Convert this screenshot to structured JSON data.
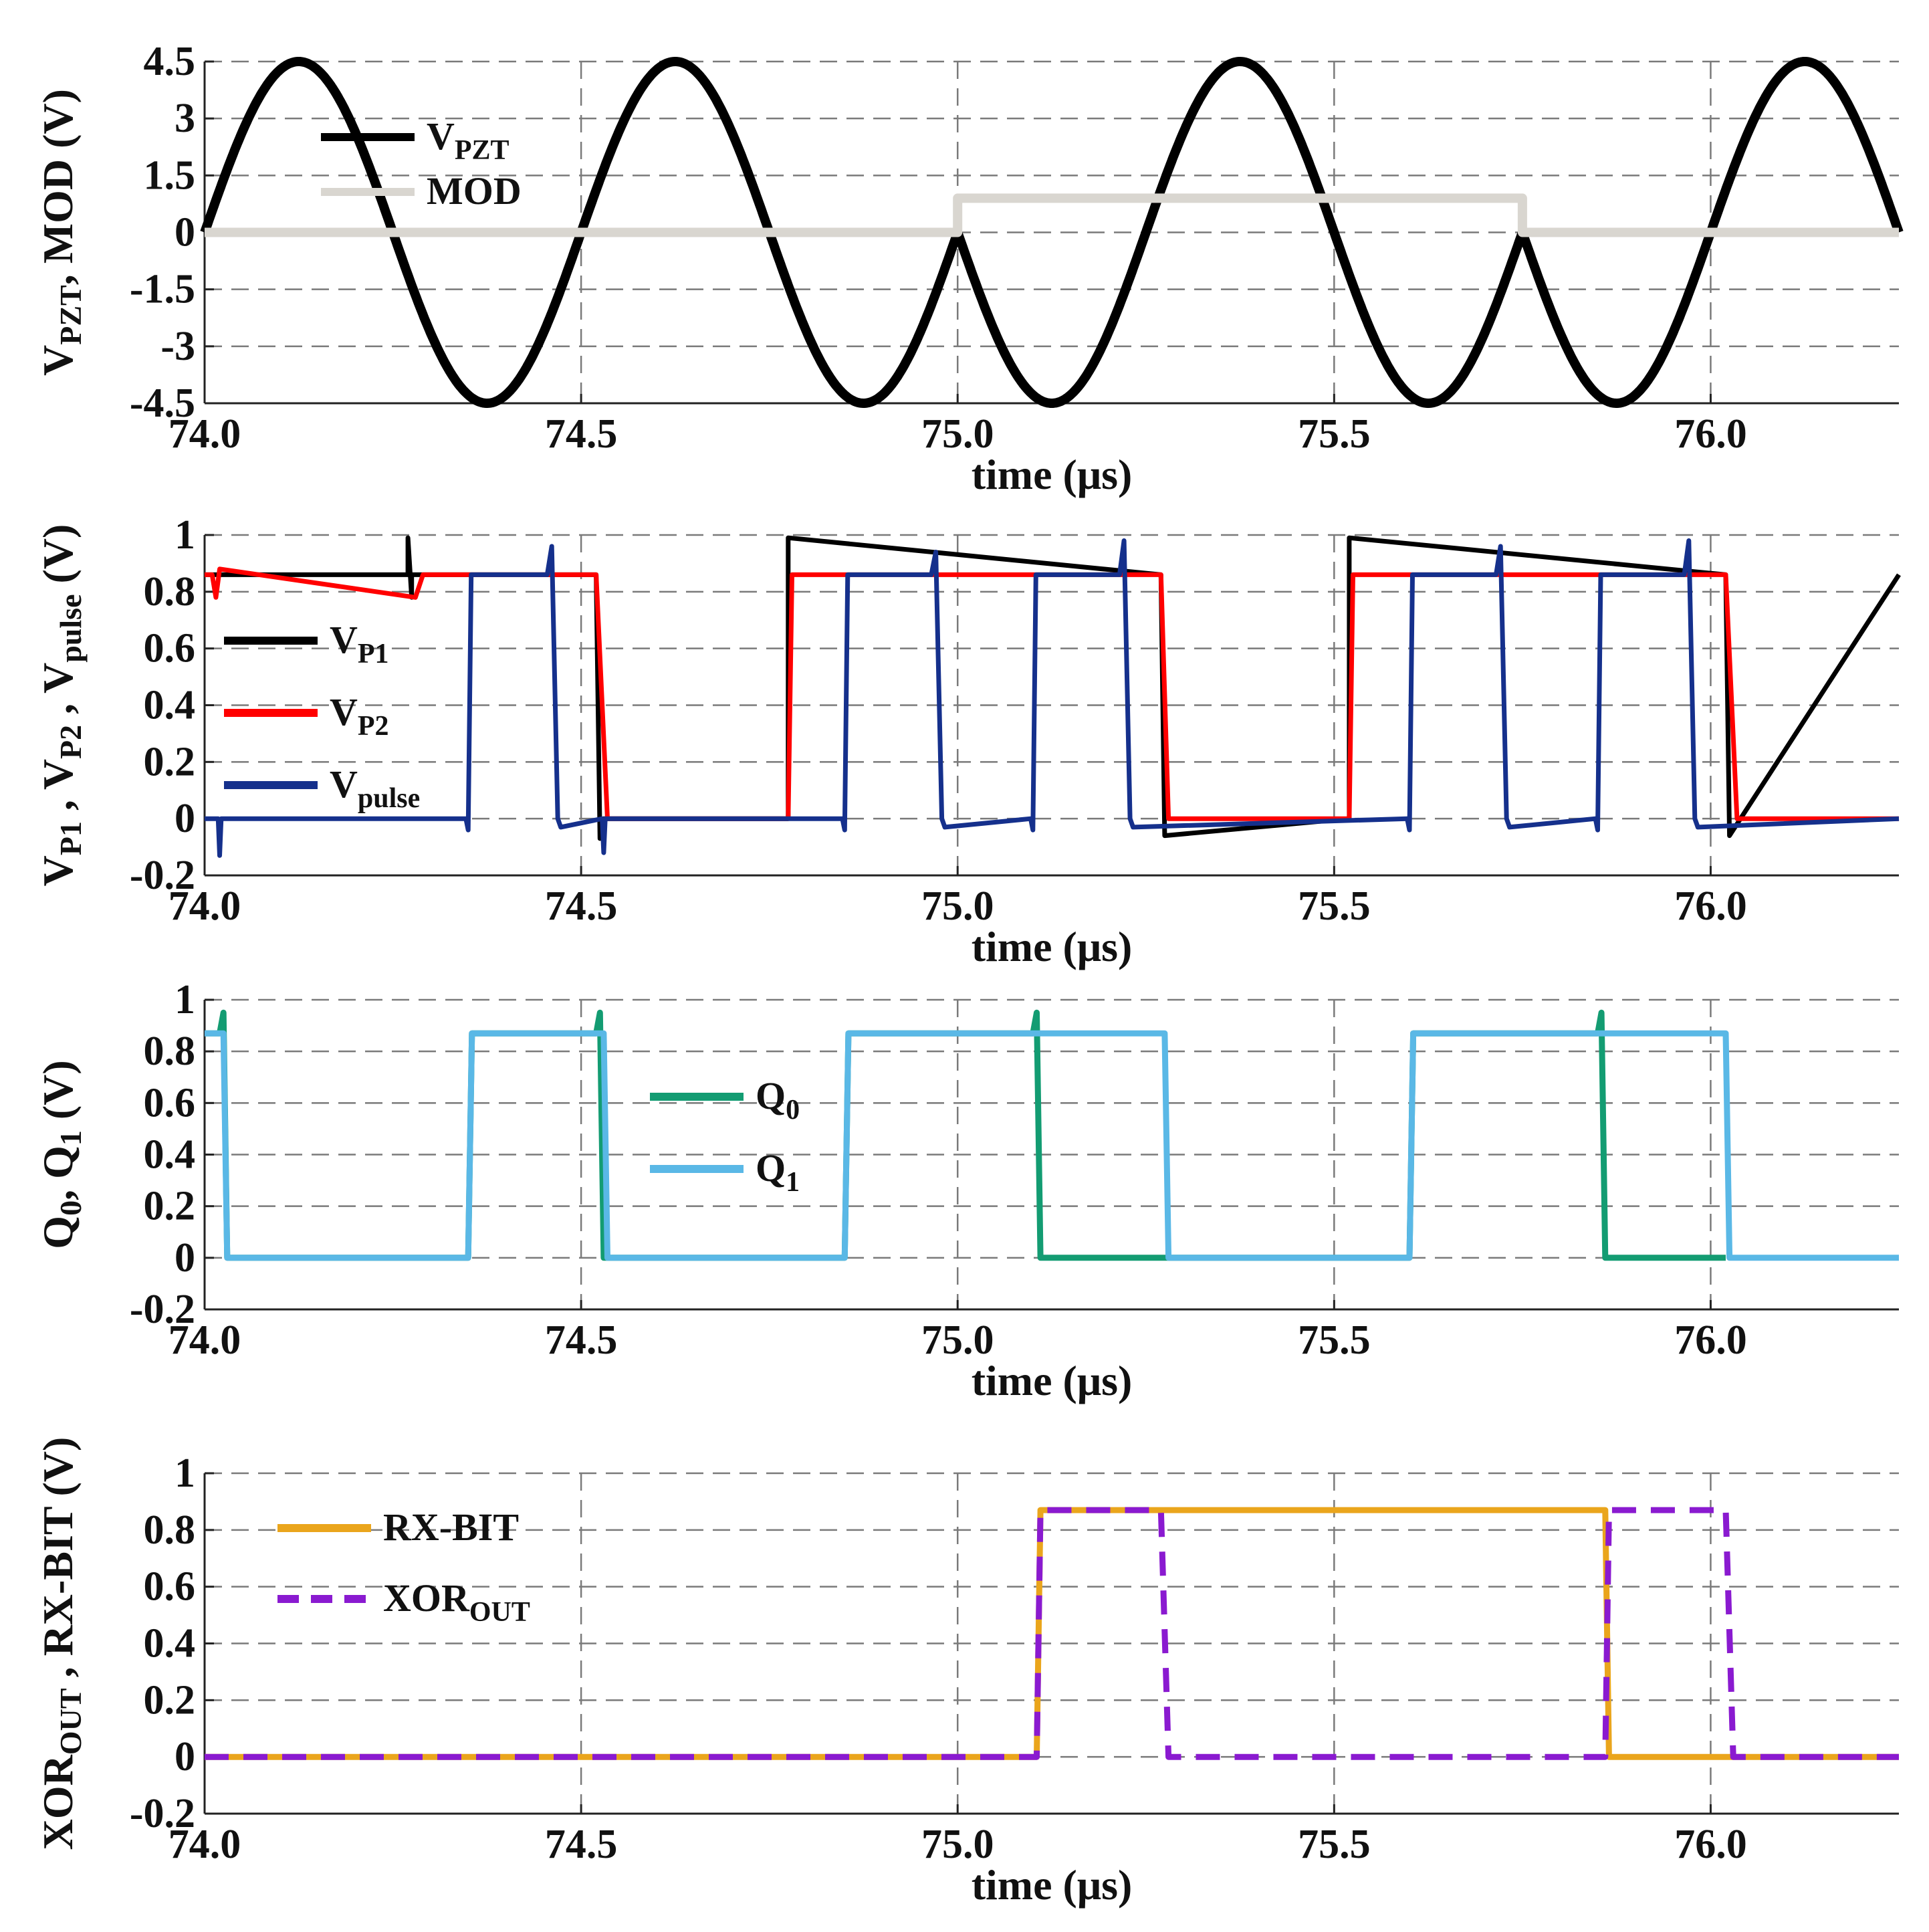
{
  "chart_data": [
    {
      "type": "line",
      "xlabel": "time  (μs)",
      "ylabel": "V_PZT, MOD (V)",
      "xlim": [
        74.0,
        76.25
      ],
      "ylim": [
        -4.5,
        4.5
      ],
      "xticks": [
        "74.0",
        "74.5",
        "75.0",
        "75.5",
        "76.0"
      ],
      "yticks": [
        "4.5",
        "3",
        "1.5",
        "0",
        "-1.5",
        "-3",
        "-4.5"
      ],
      "legend": [
        {
          "label": "V",
          "sub": "PZT",
          "color": "#000000"
        },
        {
          "label": "MOD",
          "sub": "",
          "color": "#d9d6d0"
        }
      ],
      "series": [
        {
          "name": "V_PZT",
          "color": "#000000",
          "description": "sinusoid amplitude 4.5 V, period 0.5 us, phase-inverted at 75.0 and 75.75 us",
          "params": {
            "amplitude": 4.5,
            "period": 0.5,
            "flips": [
              75.0,
              75.75
            ]
          }
        },
        {
          "name": "MOD",
          "color": "#d9d6d0",
          "x": [
            74.0,
            75.0,
            75.0,
            75.75,
            75.75,
            76.25
          ],
          "y": [
            0,
            0,
            0.9,
            0.9,
            0,
            0
          ]
        }
      ]
    },
    {
      "type": "line",
      "xlabel": "time  (μs)",
      "ylabel": "V_P1, V_P2, V_pulse (V)",
      "xlim": [
        74.0,
        76.25
      ],
      "ylim": [
        -0.2,
        1.0
      ],
      "xticks": [
        "74.0",
        "74.5",
        "75.0",
        "75.5",
        "76.0"
      ],
      "yticks": [
        "1",
        "0.8",
        "0.6",
        "0.4",
        "0.2",
        "0",
        "-0.2"
      ],
      "legend": [
        {
          "label": "V",
          "sub": "P1",
          "color": "#000000"
        },
        {
          "label": "V",
          "sub": "P2",
          "color": "#ff0000"
        },
        {
          "label": "V",
          "sub": "pulse",
          "color": "#15308c"
        }
      ],
      "series": [
        {
          "name": "V_P1",
          "color": "#000000",
          "x": [
            74.0,
            74.27,
            74.27,
            74.275,
            74.275,
            74.52,
            74.525,
            74.53,
            74.775,
            74.775,
            75.27,
            75.275,
            75.52,
            75.52,
            76.02,
            76.025,
            76.25
          ],
          "y": [
            0.86,
            0.86,
            0.99,
            0.78,
            0.86,
            0.86,
            -0.07,
            0,
            0,
            0.99,
            0.86,
            -0.06,
            0,
            0.99,
            0.86,
            -0.06,
            0.86
          ]
        },
        {
          "name": "V_P2",
          "color": "#ff0000",
          "x": [
            74.0,
            74.01,
            74.015,
            74.02,
            74.28,
            74.29,
            74.3,
            74.52,
            74.535,
            74.775,
            74.78,
            75.27,
            75.28,
            75.52,
            75.525,
            76.02,
            76.035,
            76.25
          ],
          "y": [
            0.86,
            0.86,
            0.78,
            0.88,
            0.78,
            0.86,
            0.86,
            0.86,
            0,
            0,
            0.86,
            0.86,
            0,
            0,
            0.86,
            0.86,
            0,
            0
          ]
        },
        {
          "name": "V_pulse",
          "color": "#15308c",
          "pulses": [
            [
              74.35,
              74.465,
              0.86,
              0.96
            ],
            [
              74.85,
              74.975,
              0.86,
              0.94
            ],
            [
              75.1,
              75.225,
              0.86,
              0.98
            ],
            [
              75.6,
              75.725,
              0.86,
              0.96
            ],
            [
              75.85,
              75.975,
              0.86,
              0.98
            ]
          ],
          "glitches": [
            [
              74.02,
              -0.13
            ],
            [
              74.53,
              -0.12
            ]
          ]
        }
      ]
    },
    {
      "type": "line",
      "xlabel": "time  (μs)",
      "ylabel": "Q0, Q1 (V)",
      "xlim": [
        74.0,
        76.25
      ],
      "ylim": [
        -0.2,
        1.0
      ],
      "xticks": [
        "74.0",
        "74.5",
        "75.0",
        "75.5",
        "76.0"
      ],
      "yticks": [
        "1",
        "0.8",
        "0.6",
        "0.4",
        "0.2",
        "0",
        "-0.2"
      ],
      "legend": [
        {
          "label": "Q",
          "sub": "0",
          "color": "#139c72"
        },
        {
          "label": "Q",
          "sub": "1",
          "color": "#5ab8e6"
        }
      ],
      "series": [
        {
          "name": "Q0",
          "color": "#139c72",
          "x": [
            74.0,
            74.02,
            74.025,
            74.03,
            74.35,
            74.355,
            74.52,
            74.525,
            74.53,
            74.85,
            74.855,
            75.1,
            75.105,
            75.11,
            75.6,
            75.605,
            75.85,
            75.855,
            75.86,
            76.02
          ],
          "y": [
            0.87,
            0.87,
            0.95,
            0,
            0,
            0.87,
            0.87,
            0.95,
            0,
            0,
            0.87,
            0.87,
            0.95,
            0,
            0,
            0.87,
            0.87,
            0.95,
            0,
            0
          ]
        },
        {
          "name": "Q1",
          "color": "#5ab8e6",
          "x": [
            74.0,
            74.025,
            74.03,
            74.35,
            74.355,
            74.53,
            74.535,
            74.85,
            74.855,
            75.275,
            75.28,
            75.6,
            75.605,
            76.02,
            76.025,
            76.25
          ],
          "y": [
            0.87,
            0.87,
            0,
            0,
            0.87,
            0.87,
            0,
            0,
            0.87,
            0.87,
            0,
            0,
            0.87,
            0.87,
            0,
            0
          ]
        }
      ]
    },
    {
      "type": "line",
      "xlabel": "time  (μs)",
      "ylabel": "XOR_OUT, RX-BIT (V)",
      "xlim": [
        74.0,
        76.25
      ],
      "ylim": [
        -0.2,
        1.0
      ],
      "xticks": [
        "74.0",
        "74.5",
        "75.0",
        "75.5",
        "76.0"
      ],
      "yticks": [
        "1",
        "0.8",
        "0.6",
        "0.4",
        "0.2",
        "0",
        "-0.2"
      ],
      "legend": [
        {
          "label": "RX-BIT",
          "sub": "",
          "color": "#eaa51c"
        },
        {
          "label": "XOR",
          "sub": "OUT",
          "color": "#8a1ad0"
        }
      ],
      "series": [
        {
          "name": "RX-BIT",
          "color": "#eaa51c",
          "x": [
            74.0,
            75.105,
            75.11,
            75.86,
            75.865,
            76.25
          ],
          "y": [
            0,
            0,
            0.87,
            0.87,
            0,
            0
          ]
        },
        {
          "name": "XOR_OUT",
          "color": "#8a1ad0",
          "dashed": true,
          "x": [
            74.0,
            75.105,
            75.11,
            75.27,
            75.28,
            75.86,
            75.865,
            76.02,
            76.03,
            76.25
          ],
          "y": [
            0,
            0,
            0.87,
            0.87,
            0,
            0,
            0.87,
            0.87,
            0,
            0
          ]
        }
      ]
    }
  ]
}
